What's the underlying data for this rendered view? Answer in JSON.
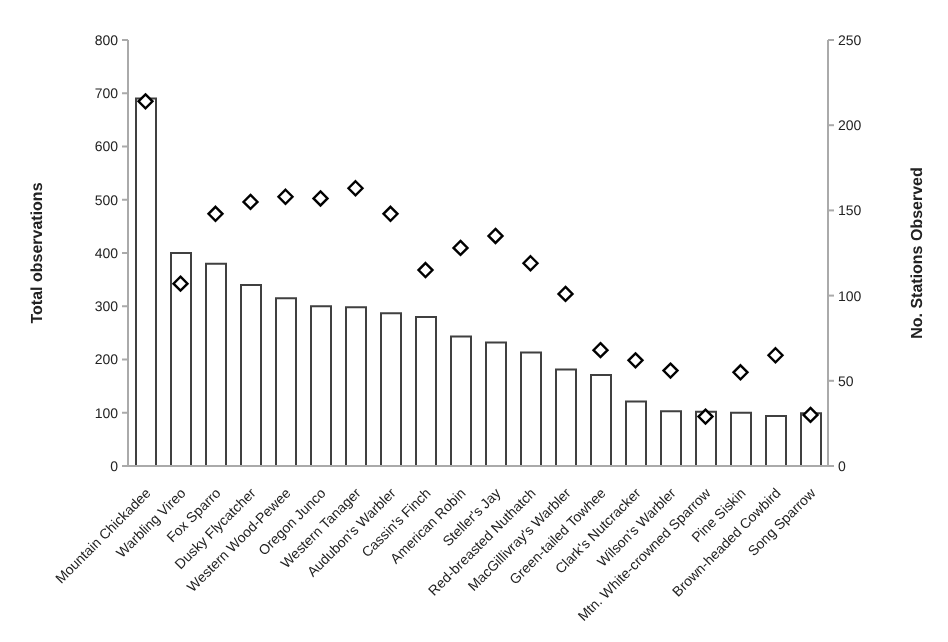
{
  "chart_data": {
    "type": "bar",
    "ylabel": "Total observations",
    "y2label": "No. Stations Observed",
    "categories": [
      "Mountain Chickadee",
      "Warbling Vireo",
      "Fox Sparro",
      "Dusky Flycatcher",
      "Western Wood-Pewee",
      "Oregon Junco",
      "Western Tanager",
      "Audubon's Warbler",
      "Cassin's Finch",
      "American Robin",
      "Steller's Jay",
      "Red-breasted Nuthatch",
      "MacGillivray's Warbler",
      "Green-tailed Towhee",
      "Clark's Nutcracker",
      "Wilson's Warbler",
      "Mtn. White-crowned Sparrow",
      "Pine Siskin",
      "Brown-headed Cowbird",
      "Song Sparrow"
    ],
    "series": [
      {
        "color": "#404040",
        "values": [
          690,
          400,
          380,
          340,
          315,
          300,
          298,
          287,
          280,
          243,
          232,
          213,
          181,
          171,
          121,
          103,
          102,
          100,
          94,
          99
        ]
      },
      {
        "type": "scatter",
        "axis": "y2",
        "marker": "diamond",
        "color": "#000000",
        "values": [
          214,
          107,
          148,
          155,
          158,
          157,
          163,
          148,
          115,
          128,
          135,
          119,
          101,
          68,
          62,
          56,
          29,
          55,
          65,
          30
        ]
      }
    ],
    "ylim": [
      0,
      800
    ],
    "yticks": [
      0,
      100,
      200,
      300,
      400,
      500,
      600,
      700,
      800
    ],
    "y2lim": [
      0,
      250
    ],
    "y2ticks": [
      0,
      50,
      100,
      150,
      200,
      250
    ],
    "grid": false,
    "legend": false
  }
}
